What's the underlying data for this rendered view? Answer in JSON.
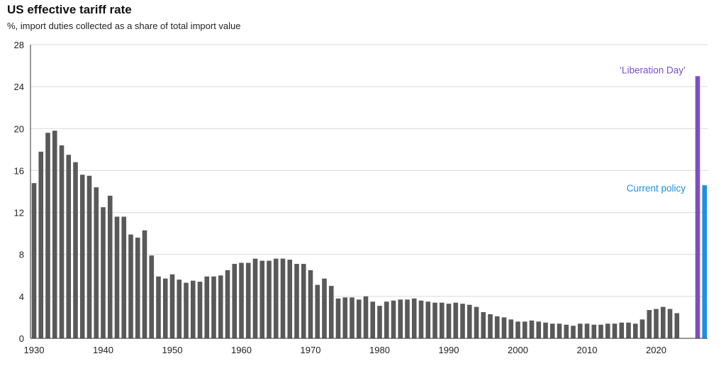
{
  "chart_data": {
    "type": "bar",
    "title": "US effective tariff rate",
    "subtitle": "%, import duties collected as a share of total import value",
    "ylim": [
      0,
      28
    ],
    "yticks": [
      0,
      4,
      8,
      12,
      16,
      20,
      24,
      28
    ],
    "xticks": [
      1930,
      1940,
      1950,
      1960,
      1970,
      1980,
      1990,
      2000,
      2010,
      2020
    ],
    "grid": "horizontal",
    "series": [
      {
        "color": "#595959",
        "x": [
          1930,
          1931,
          1932,
          1933,
          1934,
          1935,
          1936,
          1937,
          1938,
          1939,
          1940,
          1941,
          1942,
          1943,
          1944,
          1945,
          1946,
          1947,
          1948,
          1949,
          1950,
          1951,
          1952,
          1953,
          1954,
          1955,
          1956,
          1957,
          1958,
          1959,
          1960,
          1961,
          1962,
          1963,
          1964,
          1965,
          1966,
          1967,
          1968,
          1969,
          1970,
          1971,
          1972,
          1973,
          1974,
          1975,
          1976,
          1977,
          1978,
          1979,
          1980,
          1981,
          1982,
          1983,
          1984,
          1985,
          1986,
          1987,
          1988,
          1989,
          1990,
          1991,
          1992,
          1993,
          1994,
          1995,
          1996,
          1997,
          1998,
          1999,
          2000,
          2001,
          2002,
          2003,
          2004,
          2005,
          2006,
          2007,
          2008,
          2009,
          2010,
          2011,
          2012,
          2013,
          2014,
          2015,
          2016,
          2017,
          2018,
          2019,
          2020,
          2021,
          2022,
          2023
        ],
        "values": [
          14.8,
          17.8,
          19.6,
          19.8,
          18.4,
          17.5,
          16.8,
          15.6,
          15.5,
          14.4,
          12.5,
          13.6,
          11.6,
          11.6,
          9.9,
          9.6,
          10.3,
          7.9,
          5.9,
          5.7,
          6.1,
          5.6,
          5.3,
          5.5,
          5.4,
          5.9,
          5.9,
          6.0,
          6.5,
          7.1,
          7.2,
          7.2,
          7.6,
          7.4,
          7.4,
          7.6,
          7.6,
          7.5,
          7.1,
          7.1,
          6.5,
          5.1,
          5.7,
          5.0,
          3.8,
          3.9,
          3.9,
          3.7,
          4.0,
          3.5,
          3.1,
          3.5,
          3.6,
          3.7,
          3.7,
          3.8,
          3.6,
          3.5,
          3.4,
          3.4,
          3.3,
          3.4,
          3.3,
          3.2,
          3.0,
          2.5,
          2.3,
          2.1,
          2.0,
          1.8,
          1.6,
          1.6,
          1.7,
          1.6,
          1.5,
          1.4,
          1.4,
          1.3,
          1.2,
          1.4,
          1.4,
          1.3,
          1.3,
          1.4,
          1.4,
          1.5,
          1.5,
          1.4,
          1.8,
          2.7,
          2.8,
          3.0,
          2.8,
          2.4
        ]
      },
      {
        "name": "‘Liberation Day’",
        "color": "#7b4fc4",
        "x": [
          2026
        ],
        "values": [
          25.0
        ]
      },
      {
        "name": "Current policy",
        "color": "#1f8fe0",
        "x": [
          2027
        ],
        "values": [
          14.6
        ]
      }
    ],
    "annotations": [
      {
        "text": "‘Liberation Day’",
        "color": "#7b4fc4",
        "value": 25.0
      },
      {
        "text": "Current policy",
        "color": "#1f8fe0",
        "value": 14.6
      }
    ]
  }
}
